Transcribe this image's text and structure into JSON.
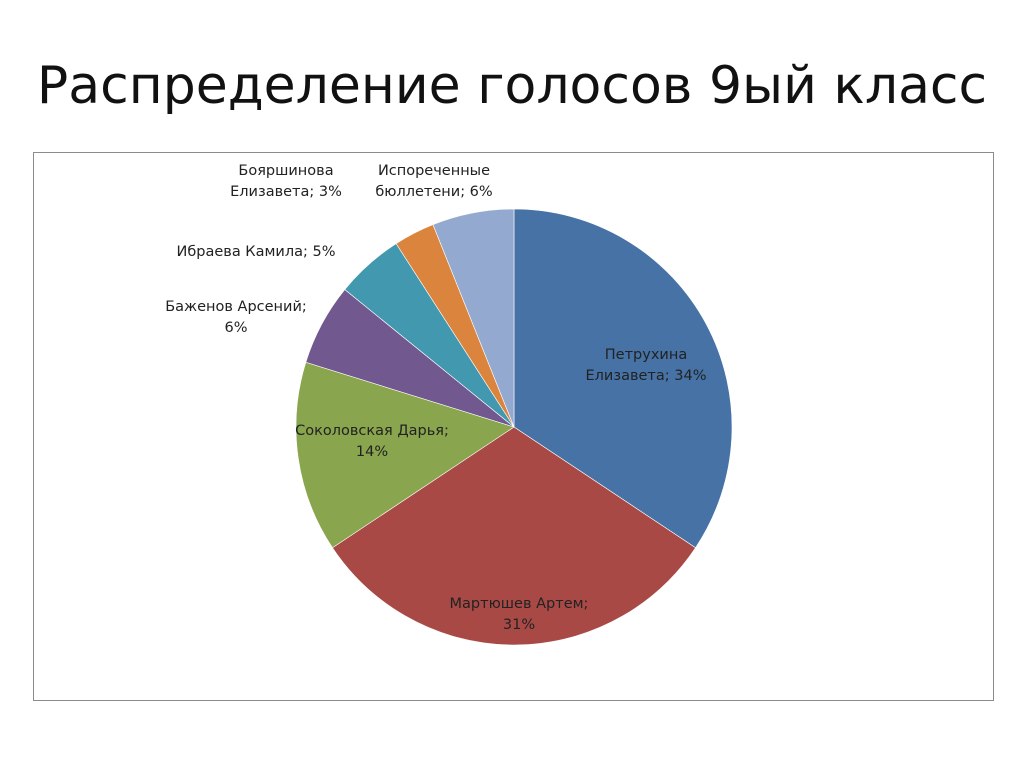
{
  "slide": {
    "title": "Распределение голосов 9ый класс"
  },
  "chart_data": {
    "type": "pie",
    "title": "",
    "start_angle_deg": 0,
    "direction": "clockwise",
    "slices": [
      {
        "name": "Петрухина Елизавета",
        "value": 34,
        "label_lines": [
          "Петрухина",
          "Елизавета; 34%"
        ],
        "color": "#4672A6",
        "label_inside": true
      },
      {
        "name": "Мартюшев Артем",
        "value": 31,
        "label_lines": [
          "Мартюшев Артем;",
          "31%"
        ],
        "color": "#A84946",
        "label_inside": true
      },
      {
        "name": "Соколовская Дарья",
        "value": 14,
        "label_lines": [
          "Соколовская Дарья;",
          "14%"
        ],
        "color": "#89A54E",
        "label_inside": true
      },
      {
        "name": "Баженов Арсений",
        "value": 6,
        "label_lines": [
          "Баженов Арсений;",
          "6%"
        ],
        "color": "#71588F",
        "label_inside": false
      },
      {
        "name": "Ибраева Камила",
        "value": 5,
        "label_lines": [
          "Ибраева Камила; 5%"
        ],
        "color": "#4298AF",
        "label_inside": false
      },
      {
        "name": "Бояршинова Елизавета",
        "value": 3,
        "label_lines": [
          "Бояршинова",
          "Елизавета; 3%"
        ],
        "color": "#DB843D",
        "label_inside": false
      },
      {
        "name": "Испореченные бюллетени",
        "value": 6,
        "label_lines": [
          "Испореченные",
          "бюллетени; 6%"
        ],
        "color": "#93A9CF",
        "label_inside": false
      }
    ]
  }
}
